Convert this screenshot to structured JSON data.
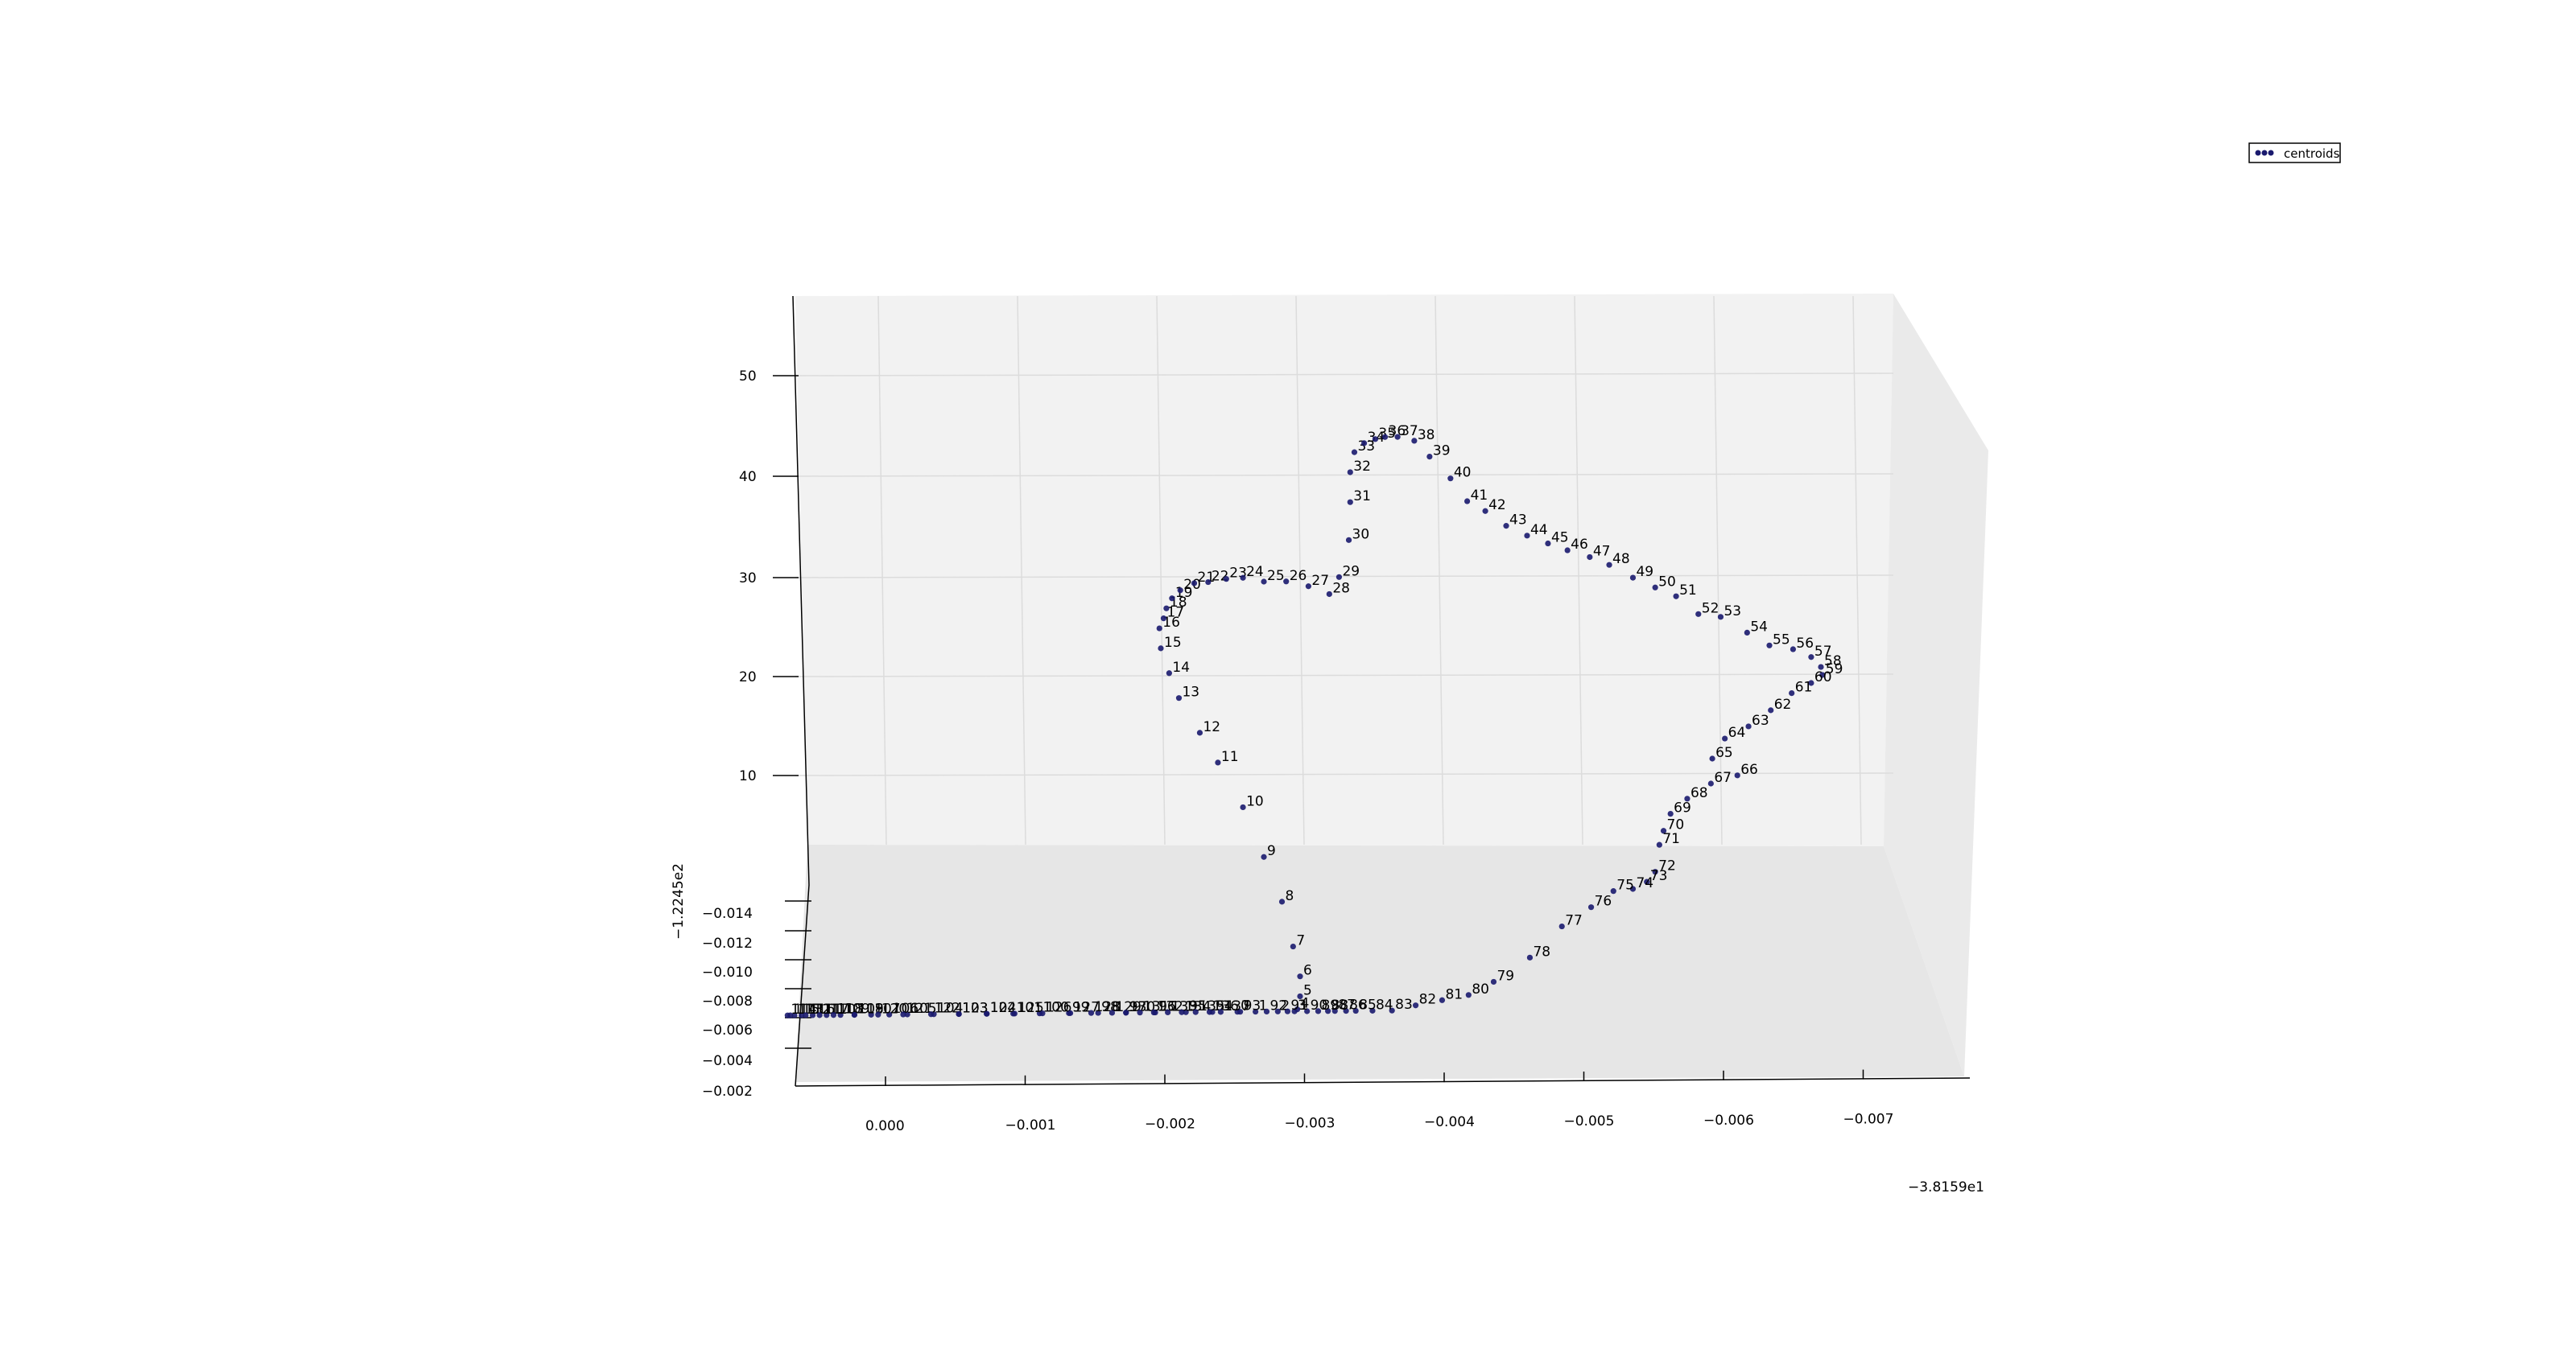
{
  "legend": {
    "label": "centroids",
    "marker_color": "#1a1a6e"
  },
  "chart_data": {
    "type": "scatter",
    "projection": "3d",
    "series": [
      {
        "name": "centroids",
        "color": "#1a1a6e"
      }
    ],
    "offsets": {
      "x": "−3.8159e1",
      "y": "−1.2245e2"
    },
    "x_ticks": [
      "0.000",
      "−0.001",
      "−0.002",
      "−0.003",
      "−0.004",
      "−0.005",
      "−0.006",
      "−0.007"
    ],
    "y_ticks": [
      "−0.014",
      "−0.012",
      "−0.010",
      "−0.008",
      "−0.006",
      "−0.004",
      "−0.002"
    ],
    "z_ticks": [
      "50",
      "40",
      "30",
      "20",
      "10"
    ],
    "xlim": [
      0.0007,
      -0.0077
    ],
    "zlim": [
      0,
      55
    ],
    "grid": true,
    "legend_position": "top-right",
    "points": [
      {
        "label": "0",
        "x": -0.00255,
        "z": 0
      },
      {
        "label": "1",
        "x": -0.00268,
        "z": 0
      },
      {
        "label": "2",
        "x": -0.00284,
        "z": 0
      },
      {
        "label": "3",
        "x": -0.00296,
        "z": 0
      },
      {
        "label": "4",
        "x": -0.00298,
        "z": 0.2
      },
      {
        "label": "5",
        "x": -0.003,
        "z": 1.5
      },
      {
        "label": "6",
        "x": -0.003,
        "z": 3.5
      },
      {
        "label": "7",
        "x": -0.00295,
        "z": 6.5
      },
      {
        "label": "8",
        "x": -0.00287,
        "z": 11
      },
      {
        "label": "9",
        "x": -0.00274,
        "z": 15.5
      },
      {
        "label": "10",
        "x": -0.00259,
        "z": 20.5
      },
      {
        "label": "11",
        "x": -0.00241,
        "z": 25
      },
      {
        "label": "12",
        "x": -0.00228,
        "z": 28
      },
      {
        "label": "13",
        "x": -0.00213,
        "z": 31.5
      },
      {
        "label": "14",
        "x": -0.00206,
        "z": 34
      },
      {
        "label": "15",
        "x": -0.002,
        "z": 36.5
      },
      {
        "label": "16",
        "x": -0.00199,
        "z": 38.5
      },
      {
        "label": "17",
        "x": -0.00202,
        "z": 39.5
      },
      {
        "label": "18",
        "x": -0.00204,
        "z": 40.5
      },
      {
        "label": "19",
        "x": -0.00208,
        "z": 41.5
      },
      {
        "label": "20",
        "x": -0.00214,
        "z": 42.3
      },
      {
        "label": "21",
        "x": -0.00224,
        "z": 43
      },
      {
        "label": "22",
        "x": -0.00234,
        "z": 43.1
      },
      {
        "label": "23",
        "x": -0.00247,
        "z": 43.4
      },
      {
        "label": "24",
        "x": -0.00259,
        "z": 43.5
      },
      {
        "label": "25",
        "x": -0.00274,
        "z": 43.1
      },
      {
        "label": "26",
        "x": -0.0029,
        "z": 43.1
      },
      {
        "label": "27",
        "x": -0.00306,
        "z": 42.6
      },
      {
        "label": "28",
        "x": -0.00321,
        "z": 41.8
      },
      {
        "label": "29",
        "x": -0.00328,
        "z": 43.5
      },
      {
        "label": "30",
        "x": -0.00335,
        "z": 47.2
      },
      {
        "label": "31",
        "x": -0.00336,
        "z": 51
      },
      {
        "label": "32",
        "x": -0.00336,
        "z": 54
      },
      {
        "label": "33",
        "x": -0.00339,
        "z": 56
      },
      {
        "label": "34",
        "x": -0.00346,
        "z": 56.9
      },
      {
        "label": "35",
        "x": -0.00354,
        "z": 57.3
      },
      {
        "label": "36",
        "x": -0.00361,
        "z": 57.5
      },
      {
        "label": "37",
        "x": -0.0037,
        "z": 57.5
      },
      {
        "label": "38",
        "x": -0.00382,
        "z": 57.1
      },
      {
        "label": "39",
        "x": -0.00393,
        "z": 55.5
      },
      {
        "label": "40",
        "x": -0.00408,
        "z": 53.3
      },
      {
        "label": "41",
        "x": -0.0042,
        "z": 51
      },
      {
        "label": "42",
        "x": -0.00433,
        "z": 50
      },
      {
        "label": "43",
        "x": -0.00448,
        "z": 48.5
      },
      {
        "label": "44",
        "x": -0.00463,
        "z": 47.5
      },
      {
        "label": "45",
        "x": -0.00478,
        "z": 46.7
      },
      {
        "label": "46",
        "x": -0.00492,
        "z": 46
      },
      {
        "label": "47",
        "x": -0.00508,
        "z": 45.3
      },
      {
        "label": "48",
        "x": -0.00522,
        "z": 44.5
      },
      {
        "label": "49",
        "x": -0.00539,
        "z": 43.2
      },
      {
        "label": "50",
        "x": -0.00555,
        "z": 42.2
      },
      {
        "label": "51",
        "x": -0.0057,
        "z": 41.3
      },
      {
        "label": "52",
        "x": -0.00586,
        "z": 39.5
      },
      {
        "label": "53",
        "x": -0.00602,
        "z": 39.2
      },
      {
        "label": "54",
        "x": -0.00621,
        "z": 37.6
      },
      {
        "label": "55",
        "x": -0.00637,
        "z": 36.3
      },
      {
        "label": "56",
        "x": -0.00654,
        "z": 35.9
      },
      {
        "label": "57",
        "x": -0.00667,
        "z": 35.1
      },
      {
        "label": "58",
        "x": -0.00674,
        "z": 34.1
      },
      {
        "label": "59",
        "x": -0.00675,
        "z": 33.3
      },
      {
        "label": "60",
        "x": -0.00667,
        "z": 32.5
      },
      {
        "label": "61",
        "x": -0.00653,
        "z": 31.5
      },
      {
        "label": "62",
        "x": -0.00638,
        "z": 29.8
      },
      {
        "label": "63",
        "x": -0.00622,
        "z": 28.2
      },
      {
        "label": "64",
        "x": -0.00605,
        "z": 27
      },
      {
        "label": "65",
        "x": -0.00596,
        "z": 25
      },
      {
        "label": "66",
        "x": -0.00614,
        "z": 23.3
      },
      {
        "label": "67",
        "x": -0.00595,
        "z": 22.5
      },
      {
        "label": "68",
        "x": -0.00578,
        "z": 21
      },
      {
        "label": "69",
        "x": -0.00566,
        "z": 19.5
      },
      {
        "label": "70",
        "x": -0.00561,
        "z": 17.8
      },
      {
        "label": "71",
        "x": -0.00558,
        "z": 16.4
      },
      {
        "label": "72",
        "x": -0.00555,
        "z": 13.7
      },
      {
        "label": "73",
        "x": -0.00549,
        "z": 12.7
      },
      {
        "label": "74",
        "x": -0.00539,
        "z": 12
      },
      {
        "label": "75",
        "x": -0.00525,
        "z": 11.8
      },
      {
        "label": "76",
        "x": -0.00509,
        "z": 10.2
      },
      {
        "label": "77",
        "x": -0.00488,
        "z": 8.3
      },
      {
        "label": "78",
        "x": -0.00465,
        "z": 5.2
      },
      {
        "label": "79",
        "x": -0.00439,
        "z": 2.8
      },
      {
        "label": "80",
        "x": -0.00421,
        "z": 1.5
      },
      {
        "label": "81",
        "x": -0.00402,
        "z": 1
      },
      {
        "label": "82",
        "x": -0.00383,
        "z": 0.5
      },
      {
        "label": "83",
        "x": -0.00366,
        "z": 0
      },
      {
        "label": "84",
        "x": -0.00352,
        "z": 0
      },
      {
        "label": "85",
        "x": -0.0034,
        "z": 0
      },
      {
        "label": "86",
        "x": -0.00333,
        "z": 0
      },
      {
        "label": "87",
        "x": -0.00325,
        "z": 0
      },
      {
        "label": "88",
        "x": -0.0032,
        "z": 0
      },
      {
        "label": "89",
        "x": -0.00313,
        "z": 0
      },
      {
        "label": "90",
        "x": -0.00305,
        "z": 0
      },
      {
        "label": "91",
        "x": -0.00291,
        "z": 0
      },
      {
        "label": "92",
        "x": -0.00276,
        "z": 0
      },
      {
        "label": "93",
        "x": -0.00257,
        "z": 0
      },
      {
        "label": "94",
        "x": -0.00237,
        "z": 0
      },
      {
        "label": "95",
        "x": -0.00218,
        "z": 0
      },
      {
        "label": "96",
        "x": -0.00196,
        "z": 0
      },
      {
        "label": "97",
        "x": -0.00175,
        "z": 0
      },
      {
        "label": "98",
        "x": -0.00155,
        "z": 0
      },
      {
        "label": "99",
        "x": -0.00134,
        "z": 0
      },
      {
        "label": "100",
        "x": -0.00113,
        "z": 0
      },
      {
        "label": "101",
        "x": -0.00094,
        "z": 0
      },
      {
        "label": "102",
        "x": -0.00075,
        "z": 0
      },
      {
        "label": "103",
        "x": -0.00055,
        "z": 0
      },
      {
        "label": "104",
        "x": -0.00037,
        "z": 0
      },
      {
        "label": "105",
        "x": -0.00018,
        "z": 0
      },
      {
        "label": "106",
        "x": -5e-05,
        "z": 0
      },
      {
        "label": "107",
        "x": 8e-05,
        "z": 0
      },
      {
        "label": "108",
        "x": 0.0002,
        "z": 0
      },
      {
        "label": "109",
        "x": 0.0003,
        "z": 0
      },
      {
        "label": "110",
        "x": 0.0004,
        "z": 0
      },
      {
        "label": "111",
        "x": 0.0005,
        "z": 0
      },
      {
        "label": "112",
        "x": 0.00058,
        "z": 0
      },
      {
        "label": "113",
        "x": 0.00063,
        "z": 0
      },
      {
        "label": "114",
        "x": 0.00068,
        "z": 0
      },
      {
        "label": "115",
        "x": 0.00066,
        "z": 0
      },
      {
        "label": "116",
        "x": 0.00055,
        "z": 0
      },
      {
        "label": "117",
        "x": 0.00045,
        "z": 0
      },
      {
        "label": "118",
        "x": 0.00035,
        "z": 0
      },
      {
        "label": "119",
        "x": 0.0002,
        "z": 0
      },
      {
        "label": "120",
        "x": 3e-05,
        "z": 0
      },
      {
        "label": "121",
        "x": -0.00015,
        "z": 0
      },
      {
        "label": "122",
        "x": -0.00035,
        "z": 0
      },
      {
        "label": "123",
        "x": -0.00055,
        "z": 0
      },
      {
        "label": "124",
        "x": -0.00075,
        "z": 0
      },
      {
        "label": "125",
        "x": -0.00095,
        "z": 0
      },
      {
        "label": "126",
        "x": -0.00115,
        "z": 0
      },
      {
        "label": "127",
        "x": -0.00135,
        "z": 0
      },
      {
        "label": "128",
        "x": -0.0015,
        "z": 0
      },
      {
        "label": "129",
        "x": -0.00165,
        "z": 0
      },
      {
        "label": "130",
        "x": -0.00175,
        "z": 0
      },
      {
        "label": "131",
        "x": -0.00185,
        "z": 0
      },
      {
        "label": "132",
        "x": -0.00195,
        "z": 0
      },
      {
        "label": "133",
        "x": -0.00205,
        "z": 0
      },
      {
        "label": "134",
        "x": -0.00215,
        "z": 0
      },
      {
        "label": "135",
        "x": -0.00225,
        "z": 0
      },
      {
        "label": "136",
        "x": -0.00235,
        "z": 0
      },
      {
        "label": "137",
        "x": -0.00243,
        "z": 0
      }
    ]
  }
}
